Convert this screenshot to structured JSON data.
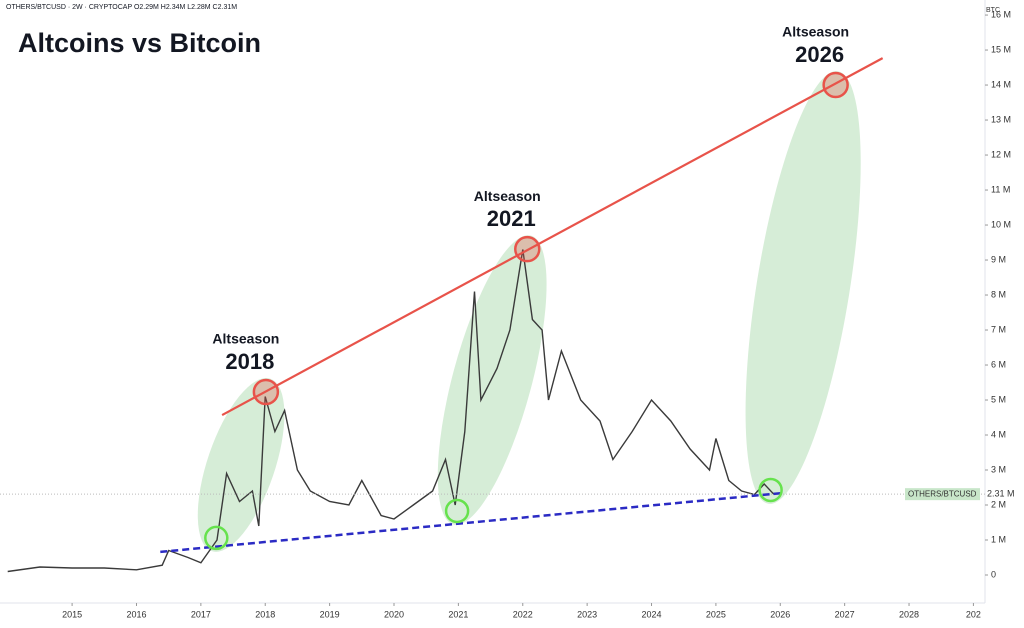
{
  "chart_data": {
    "type": "line",
    "title": "Altcoins vs Bitcoin",
    "header": "OTHERS/BTCUSD · 2W · CRYPTOCAP  O2.29M H2.34M L2.28M C2.31M",
    "y_unit": "BTC",
    "xlim": [
      2013.88,
      2029.18
    ],
    "xticks": [
      2015,
      2016,
      2017,
      2018,
      2019,
      2020,
      2021,
      2022,
      2023,
      2024,
      2025,
      2026,
      2027,
      2028,
      {
        "value": 2029,
        "label": "202"
      }
    ],
    "ylim": [
      -800000,
      16430000
    ],
    "yticks": [
      0,
      {
        "value": 1000000,
        "label": "1 M"
      },
      {
        "value": 2000000,
        "label": "2 M"
      },
      {
        "value": 3000000,
        "label": "3 M"
      },
      {
        "value": 4000000,
        "label": "4 M"
      },
      {
        "value": 5000000,
        "label": "5 M"
      },
      {
        "value": 6000000,
        "label": "6 M"
      },
      {
        "value": 7000000,
        "label": "7 M"
      },
      {
        "value": 8000000,
        "label": "8 M"
      },
      {
        "value": 9000000,
        "label": "9 M"
      },
      {
        "value": 10000000,
        "label": "10 M"
      },
      {
        "value": 11000000,
        "label": "11 M"
      },
      {
        "value": 12000000,
        "label": "12 M"
      },
      {
        "value": 13000000,
        "label": "13 M"
      },
      {
        "value": 14000000,
        "label": "14 M"
      },
      {
        "value": 15000000,
        "label": "15 M"
      },
      {
        "value": 16000000,
        "label": "16 M"
      }
    ],
    "series": [
      {
        "name": "OTHERS/BTCUSD",
        "color": "#3a3a3a",
        "x": [
          2014.0,
          2014.5,
          2015.0,
          2015.5,
          2016.0,
          2016.4,
          2016.5,
          2016.8,
          2017.0,
          2017.25,
          2017.4,
          2017.6,
          2017.8,
          2017.9,
          2018.0,
          2018.15,
          2018.3,
          2018.5,
          2018.7,
          2019.0,
          2019.3,
          2019.5,
          2019.8,
          2020.0,
          2020.3,
          2020.6,
          2020.8,
          2020.95,
          2021.1,
          2021.25,
          2021.35,
          2021.6,
          2021.8,
          2022.0,
          2022.15,
          2022.3,
          2022.4,
          2022.6,
          2022.9,
          2023.2,
          2023.4,
          2023.7,
          2024.0,
          2024.3,
          2024.6,
          2024.9,
          2025.0,
          2025.2,
          2025.4,
          2025.6,
          2025.75,
          2025.9
        ],
        "values": [
          100000,
          230000,
          200000,
          200000,
          150000,
          280000,
          700000,
          500000,
          350000,
          1000000,
          2900000,
          2100000,
          2400000,
          1400000,
          5100000,
          4100000,
          4700000,
          3000000,
          2400000,
          2100000,
          2000000,
          2700000,
          1700000,
          1600000,
          2000000,
          2400000,
          3300000,
          2000000,
          4100000,
          8100000,
          5000000,
          5900000,
          7000000,
          9300000,
          7300000,
          7000000,
          5000000,
          6400000,
          5000000,
          4400000,
          3300000,
          4100000,
          5000000,
          4400000,
          3600000,
          3000000,
          3900000,
          2700000,
          2400000,
          2300000,
          2600000,
          2310000
        ]
      }
    ],
    "price_tag": {
      "value": 2310000,
      "label": "2.31 M"
    },
    "trendlines": [
      {
        "color": "#e8534a",
        "x": [
          2017.33,
          2027.59
        ],
        "values": [
          4570000,
          14770000
        ]
      },
      {
        "color": "#2b2bc4",
        "x": [
          2016.37,
          2026.02
        ],
        "values": [
          660000,
          2340000
        ]
      }
    ],
    "waves": [
      {
        "label": "Altseason",
        "year": "2018",
        "x": [
          2017.24,
          2018.01
        ],
        "values": [
          1060000,
          5230000
        ]
      },
      {
        "label": "Altseason",
        "year": "2021",
        "x": [
          2020.98,
          2022.07
        ],
        "values": [
          1830000,
          9310000
        ]
      },
      {
        "label": "Altseason",
        "year": "2026",
        "x": [
          2025.85,
          2026.86
        ],
        "values": [
          2430000,
          14000000
        ]
      }
    ]
  }
}
